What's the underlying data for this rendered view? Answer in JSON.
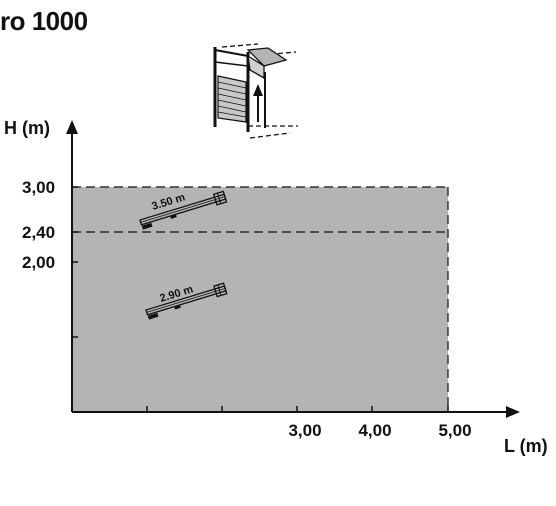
{
  "title": "ro 1000",
  "axes": {
    "y_label": "H (m)",
    "x_label": "L (m)",
    "y_ticks": [
      "3,00",
      "2,40",
      "2,00"
    ],
    "x_ticks": [
      "3,00",
      "4,00",
      "5,00"
    ]
  },
  "rails": [
    {
      "label": "3.50 m"
    },
    {
      "label": "2.90 m"
    }
  ],
  "colors": {
    "area_fill": "#b4b4b4",
    "ink": "#111111"
  },
  "chart_data": {
    "type": "area",
    "x_ticks": [
      3.0,
      4.0,
      5.0
    ],
    "y_ticks": [
      3.0,
      2.4,
      2.0
    ],
    "region": {
      "x_max": 5.0,
      "y_max": 3.0
    },
    "reference_lines": [
      {
        "axis": "y",
        "value": 3.0,
        "style": "dashed"
      },
      {
        "axis": "y",
        "value": 2.4,
        "style": "dashed"
      },
      {
        "axis": "x",
        "value": 5.0,
        "style": "dashed"
      }
    ],
    "annotations": [
      "3.50 m",
      "2.90 m"
    ],
    "xlabel": "L (m)",
    "ylabel": "H (m)"
  }
}
